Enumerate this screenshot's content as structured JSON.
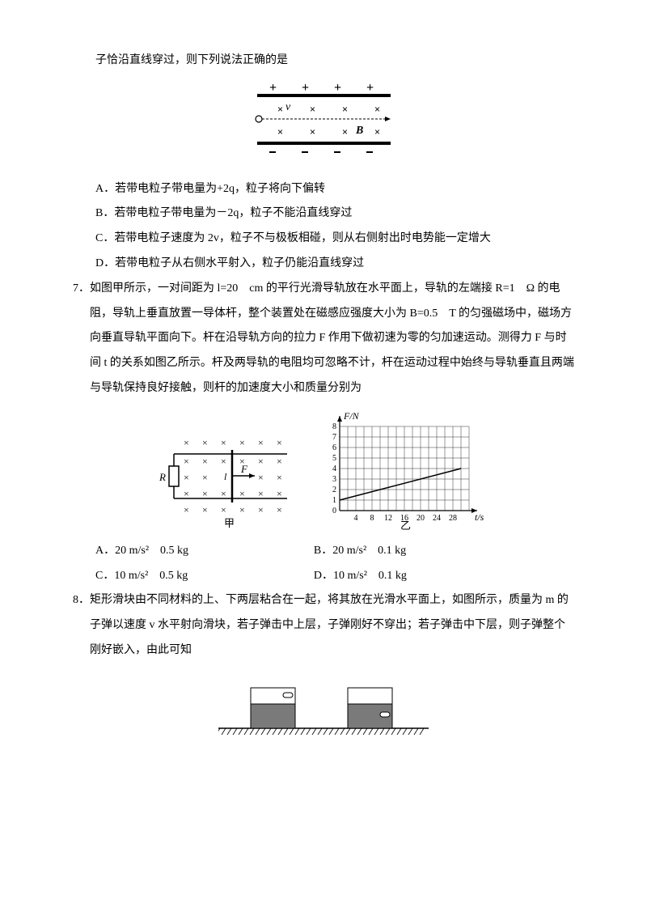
{
  "q6": {
    "intro_cont": "子恰沿直线穿过，则下列说法正确的是",
    "options": {
      "A": "A．若带电粒子带电量为+2q，粒子将向下偏转",
      "B": "B．若带电粒子带电量为－2q，粒子不能沿直线穿过",
      "C": "C．若带电粒子速度为 2v，粒子不与极板相碰，则从右侧射出时电势能一定增大",
      "D": "D．若带电粒子从右侧水平射入，粒子仍能沿直线穿过"
    },
    "figure": {
      "width": 185,
      "height": 95,
      "B_label": "B",
      "v_label": "v"
    }
  },
  "q7": {
    "num": "7．",
    "text": "如图甲所示，一对间距为 l=20　cm 的平行光滑导轨放在水平面上，导轨的左端接 R=1　Ω 的电阻，导轨上垂直放置一导体杆，整个装置处在磁感应强度大小为 B=0.5　T 的匀强磁场中，磁场方向垂直导轨平面向下。杆在沿导轨方向的拉力 F 作用下做初速为零的匀加速运动。测得力 F 与时间 t 的关系如图乙所示。杆及两导轨的电阻均可忽略不计，杆在运动过程中始终与导轨垂直且两端与导轨保持良好接触，则杆的加速度大小和质量分别为",
    "fig1": {
      "R_label": "R",
      "F_label": "F",
      "l_label": "l",
      "caption": "甲"
    },
    "fig2": {
      "ylabel": "F/N",
      "xlabel": "t/s",
      "caption": "乙",
      "y_ticks": [
        "0",
        "1",
        "2",
        "3",
        "4",
        "5",
        "6",
        "7",
        "8"
      ],
      "x_ticks": [
        "4",
        "8",
        "12",
        "16",
        "20",
        "24",
        "28"
      ],
      "line": {
        "x1_val": 0,
        "y1_val": 1,
        "x2_val": 30,
        "y2_val": 4
      },
      "grid_color": "#000000",
      "bg_color": "#ffffff"
    },
    "options": {
      "A": "A．20 m/s²　0.5 kg",
      "B": "B．20 m/s²　0.1 kg",
      "C": "C．10 m/s²　0.5 kg",
      "D": "D．10 m/s²　0.1 kg"
    }
  },
  "q8": {
    "num": "8．",
    "text": "矩形滑块由不同材料的上、下两层粘合在一起，将其放在光滑水平面上，如图所示，质量为 m 的子弹以速度 v 水平射向滑块，若子弹击中上层，子弹刚好不穿出；若子弹击中下层，则子弹整个刚好嵌入，由此可知",
    "figure": {
      "fill_lower": "#7a7a7a",
      "fill_upper": "#ffffff",
      "stroke": "#000000",
      "hatch_color": "#000000"
    }
  }
}
